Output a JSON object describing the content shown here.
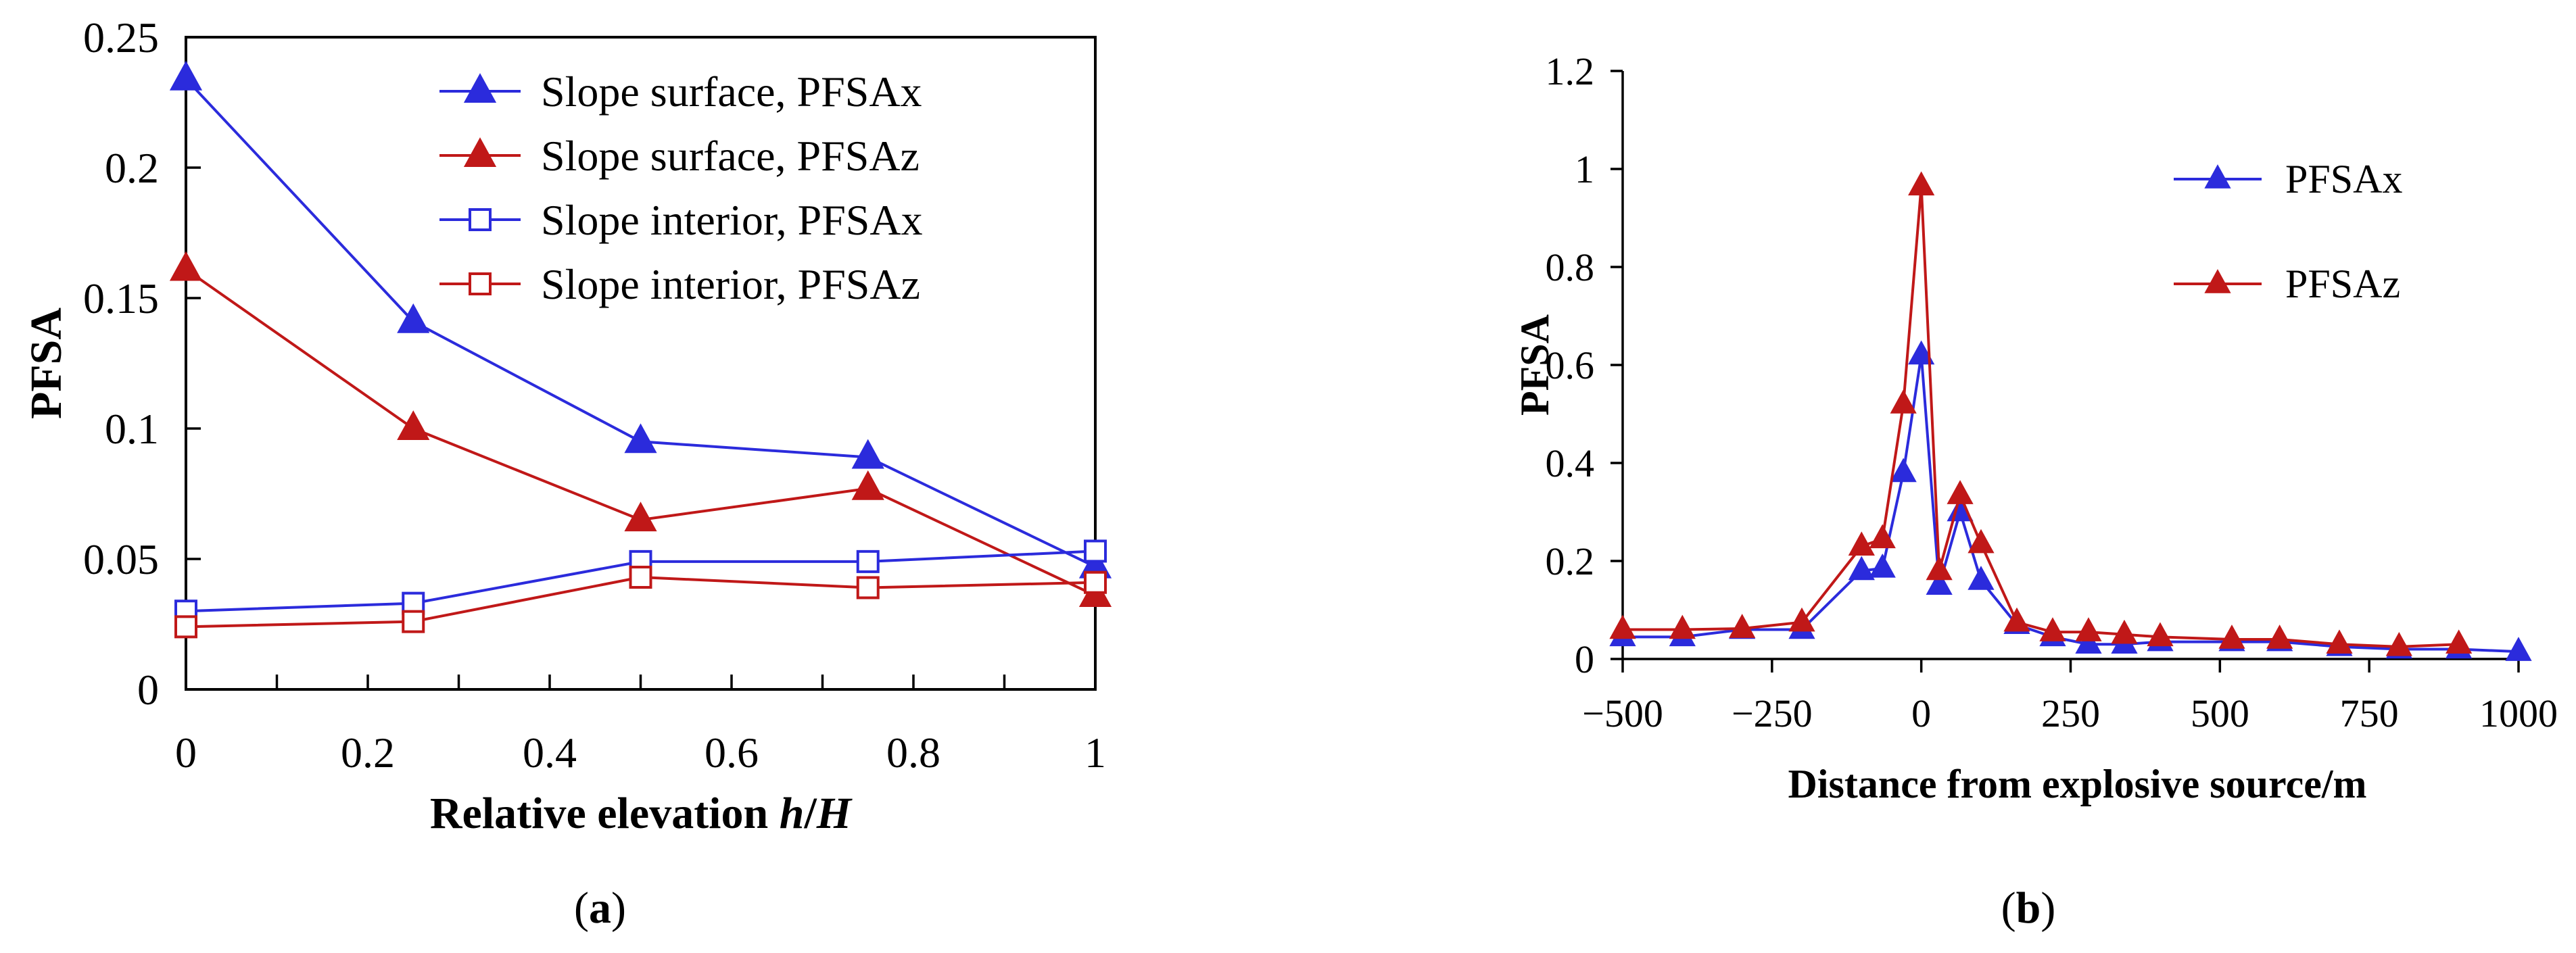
{
  "chart_data": [
    {
      "type": "line",
      "panel_label": "(a)",
      "panel_letter": "a",
      "xlabel": "Relative elevation h/H",
      "xlabel_parts": [
        "Relative elevation ",
        "h",
        "/",
        "H"
      ],
      "ylabel": "PFSA",
      "xlim": [
        0,
        1
      ],
      "ylim": [
        0,
        0.25
      ],
      "xticks": [
        0,
        0.2,
        0.4,
        0.6,
        0.8,
        1
      ],
      "xtick_labels": [
        "0",
        "0.2",
        "0.4",
        "0.6",
        "0.8",
        "1"
      ],
      "yticks": [
        0,
        0.05,
        0.1,
        0.15,
        0.2,
        0.25
      ],
      "ytick_labels": [
        "0",
        "0.05",
        "0.1",
        "0.15",
        "0.2",
        "0.25"
      ],
      "legend_position": "top-right",
      "x": [
        0,
        0.25,
        0.5,
        0.75,
        1
      ],
      "series": [
        {
          "name": "Slope surface, PFSAx",
          "color": "#2b2bdc",
          "marker": "filled-triangle",
          "values": [
            0.234,
            0.141,
            0.095,
            0.089,
            0.047
          ]
        },
        {
          "name": "Slope surface, PFSAz",
          "color": "#c01818",
          "marker": "filled-triangle",
          "values": [
            0.161,
            0.1,
            0.065,
            0.077,
            0.036
          ]
        },
        {
          "name": "Slope interior, PFSAx",
          "color": "#2b2bdc",
          "marker": "open-square",
          "values": [
            0.03,
            0.033,
            0.049,
            0.049,
            0.053
          ]
        },
        {
          "name": "Slope interior, PFSAz",
          "color": "#c01818",
          "marker": "open-square",
          "values": [
            0.024,
            0.026,
            0.043,
            0.039,
            0.041
          ]
        }
      ]
    },
    {
      "type": "line",
      "panel_label": "(b)",
      "panel_letter": "b",
      "xlabel": "Distance from explosive source/m",
      "ylabel": "PFSA",
      "xlim": [
        -500,
        1000
      ],
      "ylim": [
        0,
        1.2
      ],
      "xticks": [
        -500,
        -250,
        0,
        250,
        500,
        750,
        1000
      ],
      "xtick_labels": [
        "−500",
        "−250",
        "0",
        "250",
        "500",
        "750",
        "1000"
      ],
      "yticks": [
        0,
        0.2,
        0.4,
        0.6,
        0.8,
        1,
        1.2
      ],
      "ytick_labels": [
        "0",
        "0.2",
        "0.4",
        "0.6",
        "0.8",
        "1",
        "1.2"
      ],
      "legend_position": "top-right",
      "series": [
        {
          "name": "PFSAx",
          "color": "#2b2bdc",
          "marker": "filled-triangle",
          "x": [
            -500,
            -400,
            -300,
            -200,
            -100,
            -65,
            -30,
            0,
            30,
            65,
            100,
            160,
            220,
            280,
            340,
            400,
            520,
            600,
            700,
            800,
            900,
            1000
          ],
          "values": [
            0.045,
            0.045,
            0.06,
            0.06,
            0.18,
            0.185,
            0.38,
            0.62,
            0.15,
            0.3,
            0.16,
            0.07,
            0.045,
            0.03,
            0.03,
            0.035,
            0.035,
            0.035,
            0.025,
            0.02,
            0.02,
            0.015
          ]
        },
        {
          "name": "PFSAz",
          "color": "#c01818",
          "marker": "filled-triangle",
          "x": [
            -500,
            -400,
            -300,
            -200,
            -100,
            -65,
            -30,
            0,
            30,
            65,
            100,
            160,
            220,
            280,
            340,
            400,
            520,
            600,
            700,
            800,
            900
          ],
          "values": [
            0.06,
            0.06,
            0.062,
            0.075,
            0.23,
            0.245,
            0.52,
            0.965,
            0.18,
            0.335,
            0.235,
            0.075,
            0.055,
            0.055,
            0.05,
            0.045,
            0.04,
            0.04,
            0.03,
            0.025,
            0.03
          ]
        }
      ]
    }
  ]
}
